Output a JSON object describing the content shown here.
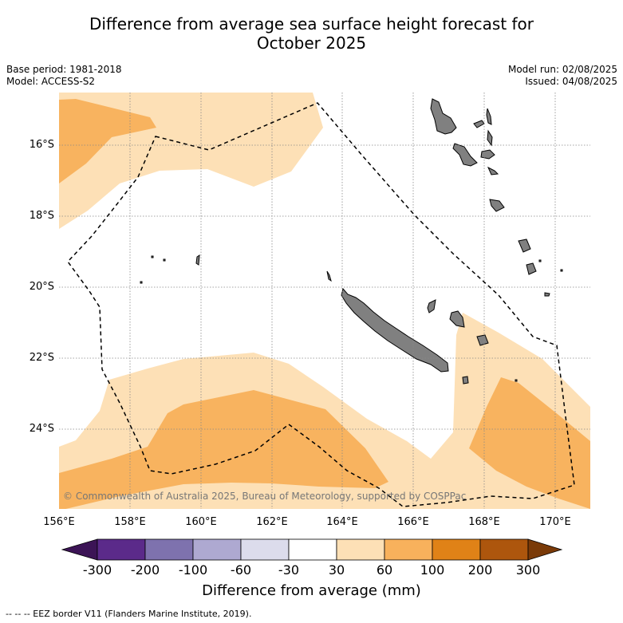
{
  "title_line1": "Difference from average sea surface height forecast for",
  "title_line2": "October 2025",
  "meta_left": [
    "Base period: 1981-2018",
    "Model: ACCESS-S2"
  ],
  "meta_right": [
    "Model run: 02/08/2025",
    "Issued: 04/08/2025"
  ],
  "lat_labels": [
    "16°S",
    "18°S",
    "20°S",
    "22°S",
    "24°S"
  ],
  "lon_labels": [
    "156°E",
    "158°E",
    "160°E",
    "162°E",
    "164°E",
    "166°E",
    "168°E",
    "170°E"
  ],
  "copyright": "© Commonwealth of Australia 2025, Bureau of Meteorology, supported by COSPPac",
  "colorbar": {
    "ticks": [
      "-300",
      "-200",
      "-100",
      "-60",
      "-30",
      "30",
      "60",
      "100",
      "200",
      "300"
    ],
    "colors": [
      "#3c1456",
      "#5b2a8a",
      "#7e72ae",
      "#aea9d1",
      "#dcdcec",
      "#ffffff",
      "#fde0b6",
      "#f8b15c",
      "#e08217",
      "#ad560d",
      "#7a3a08"
    ],
    "title": "Difference from average (mm)"
  },
  "legend_line": "-- -- -- EEZ border V11 (Flanders Marine Institute, 2019).",
  "palette": {
    "light_orange": "#fde0b6",
    "mid_orange": "#f8b35f",
    "land": "#808080",
    "grid": "#888888"
  }
}
